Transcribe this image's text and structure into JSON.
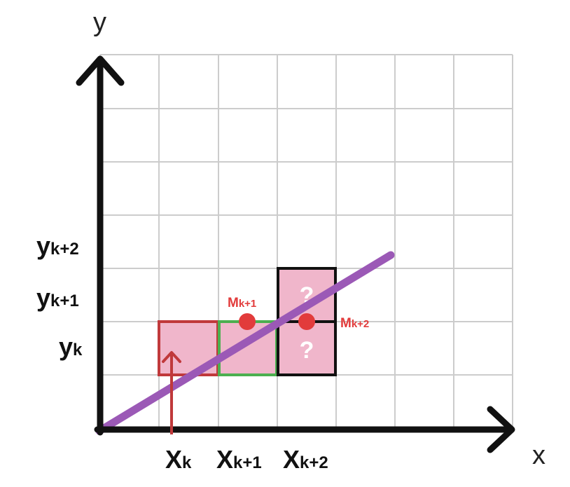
{
  "axes": {
    "x_label": "x",
    "y_label": "y"
  },
  "x_ticks": [
    {
      "main": "X",
      "sub": "k"
    },
    {
      "main": "X",
      "sub": "k+1"
    },
    {
      "main": "X",
      "sub": "k+2"
    }
  ],
  "y_ticks": [
    {
      "main": "y",
      "sub": "k"
    },
    {
      "main": "y",
      "sub": "k+1"
    },
    {
      "main": "y",
      "sub": "k+2"
    }
  ],
  "midpoints": [
    {
      "main": "M",
      "sub": "k+1"
    },
    {
      "main": "M",
      "sub": "k+2"
    }
  ],
  "candidates": [
    "?",
    "?"
  ],
  "colors": {
    "line": "#9b59b6",
    "fill": "#f0b6cb",
    "pixel_k": "#c0393b",
    "pixel_k1": "#4caf50",
    "candidate": "#111111",
    "midpoint": "#e23b3b",
    "arrow": "#c0393b",
    "grid": "#cccccc",
    "axis": "#111111"
  }
}
